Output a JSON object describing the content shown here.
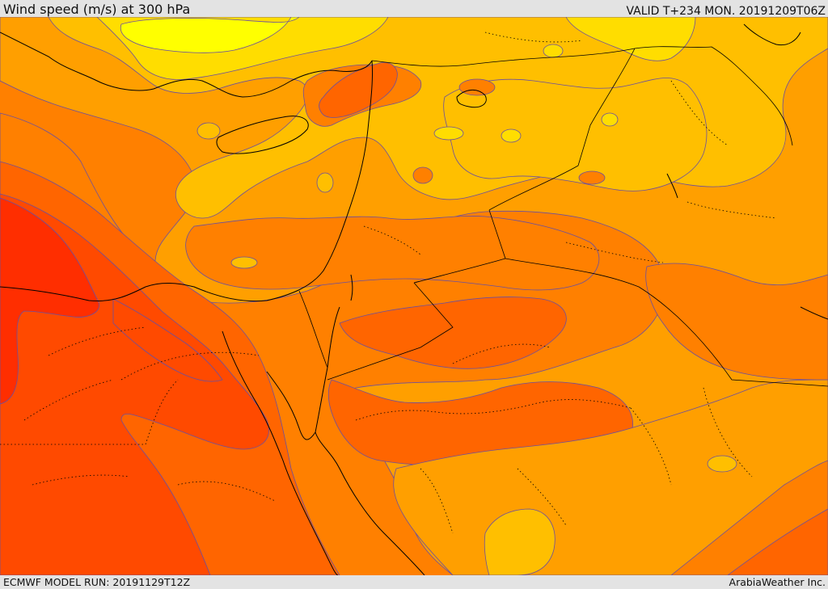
{
  "header": {
    "title": "Wind speed (m/s) at 300 hPa",
    "valid": "VALID T+234 MON. 20191209T06Z"
  },
  "footer": {
    "model_run": "ECMWF MODEL RUN: 20191129T12Z",
    "credit": "ArabiaWeather Inc."
  },
  "map": {
    "variable": "wind-speed-300hPa",
    "palette": {
      "band_1": "#ffff00",
      "band_2": "#ffdd00",
      "band_3": "#ffbf00",
      "band_4": "#ff9f00",
      "band_5": "#ff8000",
      "band_6": "#ff6500",
      "band_7": "#ff4a00",
      "band_8": "#ff2e00",
      "contour_line": "#6a4fa0",
      "coastline": "#000000",
      "border": "#000000"
    }
  }
}
